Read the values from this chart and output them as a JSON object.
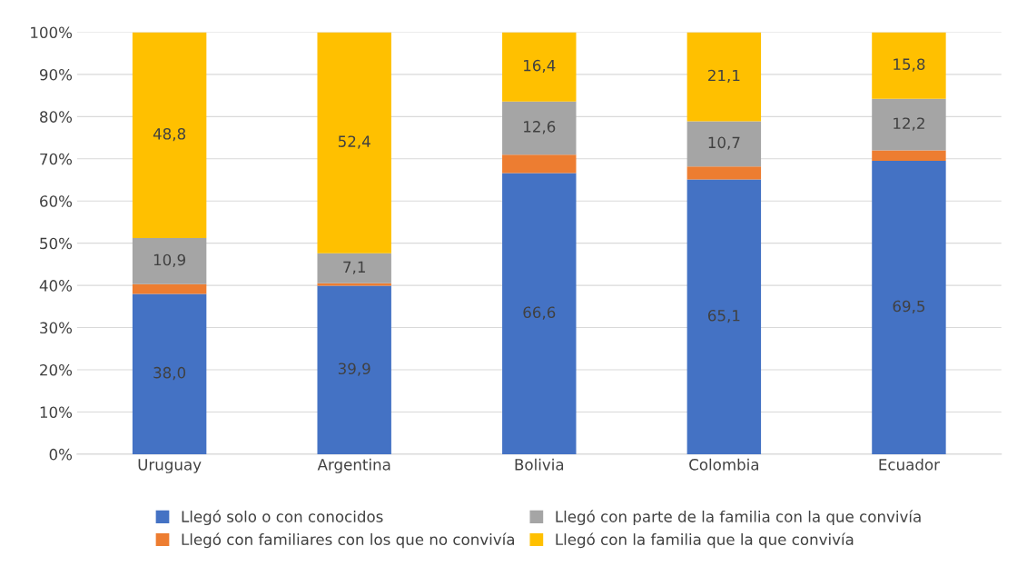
{
  "chart_data": {
    "type": "bar",
    "stacked": true,
    "categories": [
      "Uruguay",
      "Argentina",
      "Bolivia",
      "Colombia",
      "Ecuador"
    ],
    "series": [
      {
        "name": "Llegó solo o con conocidos",
        "color": "#4472c4",
        "values": [
          38.0,
          39.9,
          66.6,
          65.1,
          69.5
        ],
        "value_labels": [
          "38,0",
          "39,9",
          "66,6",
          "65,1",
          "69,5"
        ]
      },
      {
        "name": "Llegó con familiares con los que no convivía",
        "color": "#ed7d31",
        "values": [
          2.3,
          0.6,
          4.4,
          3.1,
          2.5
        ],
        "value_labels": [
          null,
          null,
          null,
          null,
          null
        ]
      },
      {
        "name": "Llegó con parte de la familia con la que convivía",
        "color": "#a5a5a5",
        "values": [
          10.9,
          7.1,
          12.6,
          10.7,
          12.2
        ],
        "value_labels": [
          "10,9",
          "7,1",
          "12,6",
          "10,7",
          "12,2"
        ]
      },
      {
        "name": "Llegó con la familia que la que convivía",
        "color": "#ffc000",
        "values": [
          48.8,
          52.4,
          16.4,
          21.1,
          15.8
        ],
        "value_labels": [
          "48,8",
          "52,4",
          "16,4",
          "21,1",
          "15,8"
        ]
      }
    ],
    "ylim": [
      0,
      100
    ],
    "yticks": [
      {
        "value": 0,
        "label": "0%"
      },
      {
        "value": 10,
        "label": "10%"
      },
      {
        "value": 20,
        "label": "20%"
      },
      {
        "value": 30,
        "label": "30%"
      },
      {
        "value": 40,
        "label": "40%"
      },
      {
        "value": 50,
        "label": "50%"
      },
      {
        "value": 60,
        "label": "60%"
      },
      {
        "value": 70,
        "label": "70%"
      },
      {
        "value": 80,
        "label": "80%"
      },
      {
        "value": 90,
        "label": "90%"
      },
      {
        "value": 100,
        "label": "100%"
      }
    ],
    "grid": "y",
    "legend": "bottom"
  }
}
